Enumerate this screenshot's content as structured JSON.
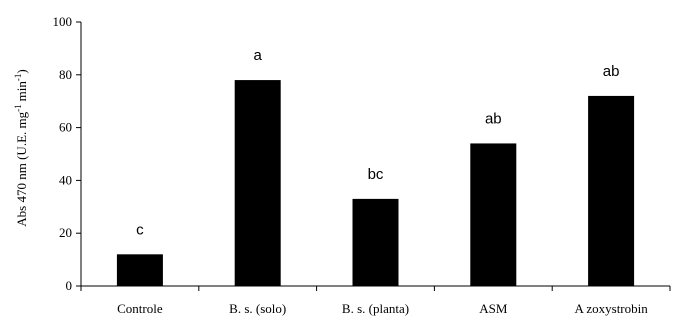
{
  "chart_data": {
    "type": "bar",
    "categories": [
      "Controle",
      "B. s. (solo)",
      "B. s. (planta)",
      "ASM",
      "A zoxystrobin"
    ],
    "values": [
      12,
      78,
      33,
      54,
      72
    ],
    "significance_letters": [
      "c",
      "a",
      "bc",
      "ab",
      "ab"
    ],
    "ylabel": "Abs 470 nm (U.E. mg",
    "ylabel_sup1": "-1",
    "ylabel_mid": "min",
    "ylabel_sup2": "-1",
    "ylabel_end": ")",
    "ylim": [
      0,
      100
    ],
    "yticks": [
      0,
      20,
      40,
      60,
      80,
      100
    ],
    "bar_color": "#000000",
    "grid": false
  }
}
